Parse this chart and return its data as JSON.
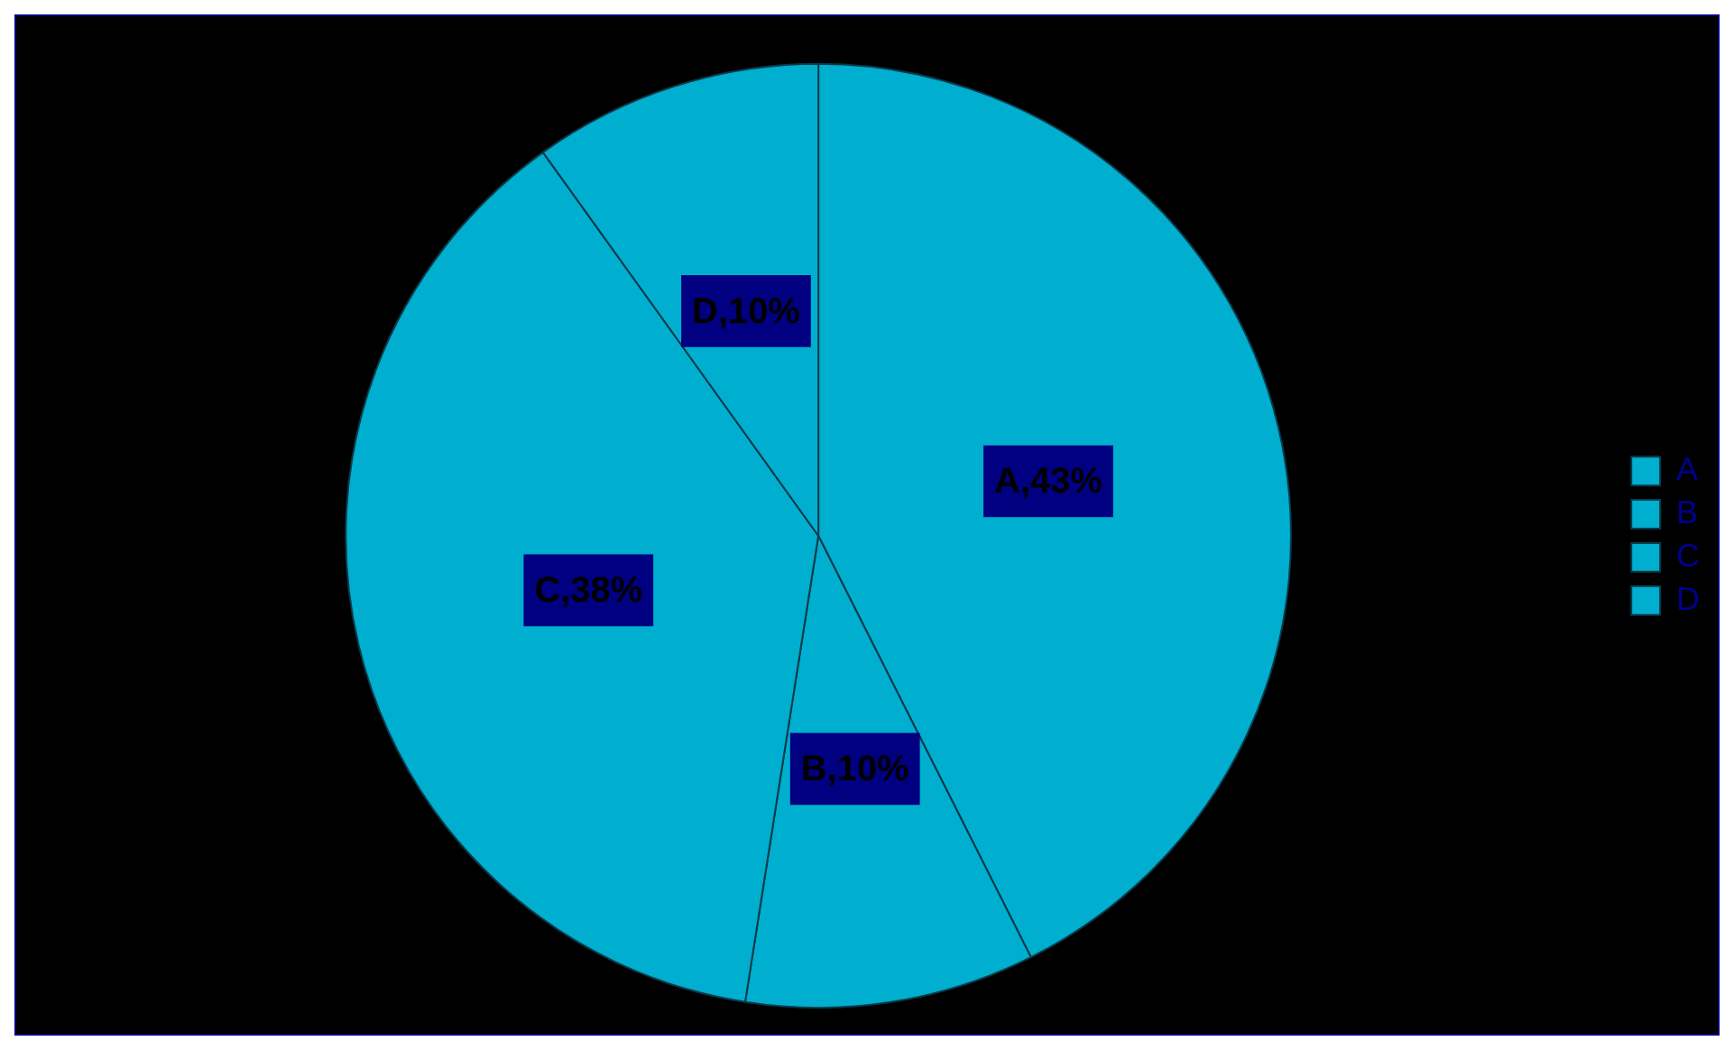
{
  "chart_data": {
    "type": "pie",
    "categories": [
      "A",
      "B",
      "C",
      "D"
    ],
    "values": [
      43,
      10,
      38,
      10
    ],
    "colors": [
      "#00aecf",
      "#00aecf",
      "#00aecf",
      "#00aecf"
    ],
    "value_labels": [
      "A,43%",
      "B,10%",
      "C,38%",
      "D,10%"
    ],
    "legend": "right"
  }
}
